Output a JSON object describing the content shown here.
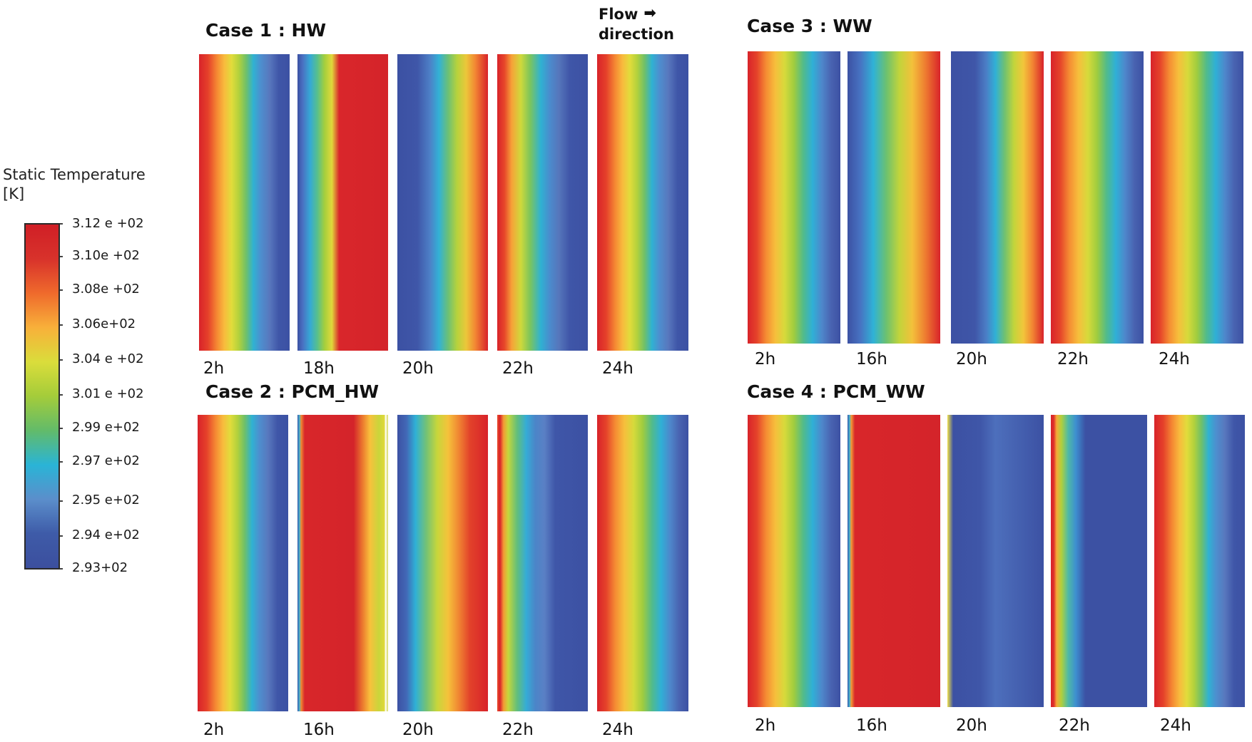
{
  "legend": {
    "title_line1": "Static Temperature",
    "title_line2": "[K]",
    "labels": [
      "3.12 e +02",
      "3.10e +02",
      "3.08e +02",
      "3.06e+02",
      "3.04 e +02",
      "3.01 e +02",
      "2.99 e+02",
      "2.97 e+02",
      "2.95 e+02",
      "2.94 e+02",
      "2.93+02"
    ],
    "color_max": "#d01f26",
    "color_min": "#3c4f9e"
  },
  "flow": {
    "line1": "Flow",
    "line2": "direction",
    "arrow": "➡"
  },
  "cases": [
    {
      "title": "Case 1 : HW",
      "times": [
        "2h",
        "18h",
        "20h",
        "22h",
        "24h"
      ]
    },
    {
      "title": "Case 2 : PCM_HW",
      "times": [
        "2h",
        "16h",
        "20h",
        "22h",
        "24h"
      ]
    },
    {
      "title": "Case 3 : WW",
      "times": [
        "2h",
        "16h",
        "20h",
        "22h",
        "24h"
      ]
    },
    {
      "title": "Case 4 : PCM_WW",
      "times": [
        "2h",
        "16h",
        "20h",
        "22h",
        "24h"
      ]
    }
  ]
}
